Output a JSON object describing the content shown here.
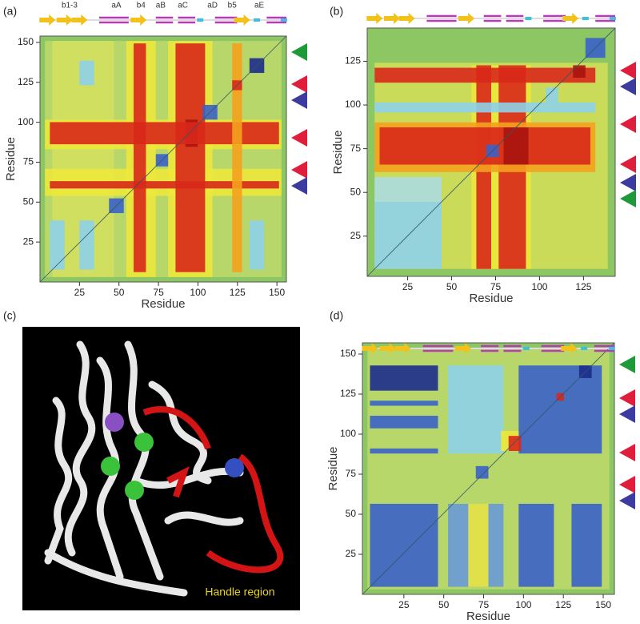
{
  "chart_data": [
    {
      "type": "heatmap",
      "panel": "(a)",
      "xlabel": "Residue",
      "ylabel": "Residue",
      "xlim": [
        0,
        156
      ],
      "ylim": [
        0,
        154
      ],
      "xticks": [
        25,
        50,
        75,
        100,
        125,
        150
      ],
      "yticks": [
        25,
        50,
        75,
        100,
        125,
        150
      ],
      "structure_labels": [
        "b1-3",
        "aA",
        "b4",
        "aB",
        "aC",
        "aD",
        "b5",
        "aE"
      ]
    },
    {
      "type": "heatmap",
      "panel": "(b)",
      "xlabel": "Residue",
      "ylabel": "Residue",
      "xlim": [
        2,
        143
      ],
      "ylim": [
        2,
        144
      ],
      "xticks": [
        25,
        50,
        75,
        100,
        125
      ],
      "yticks": [
        25,
        50,
        75,
        100,
        125
      ]
    },
    {
      "type": "image",
      "panel": "(c)",
      "annotation": "Handle region"
    },
    {
      "type": "heatmap",
      "panel": "(d)",
      "xlabel": "Residue",
      "ylabel": "Residue",
      "xlim": [
        -1,
        157
      ],
      "ylim": [
        0,
        157
      ],
      "xticks": [
        25,
        50,
        75,
        100,
        125,
        150
      ],
      "yticks": [
        25,
        50,
        75,
        100,
        125,
        150
      ]
    }
  ]
}
